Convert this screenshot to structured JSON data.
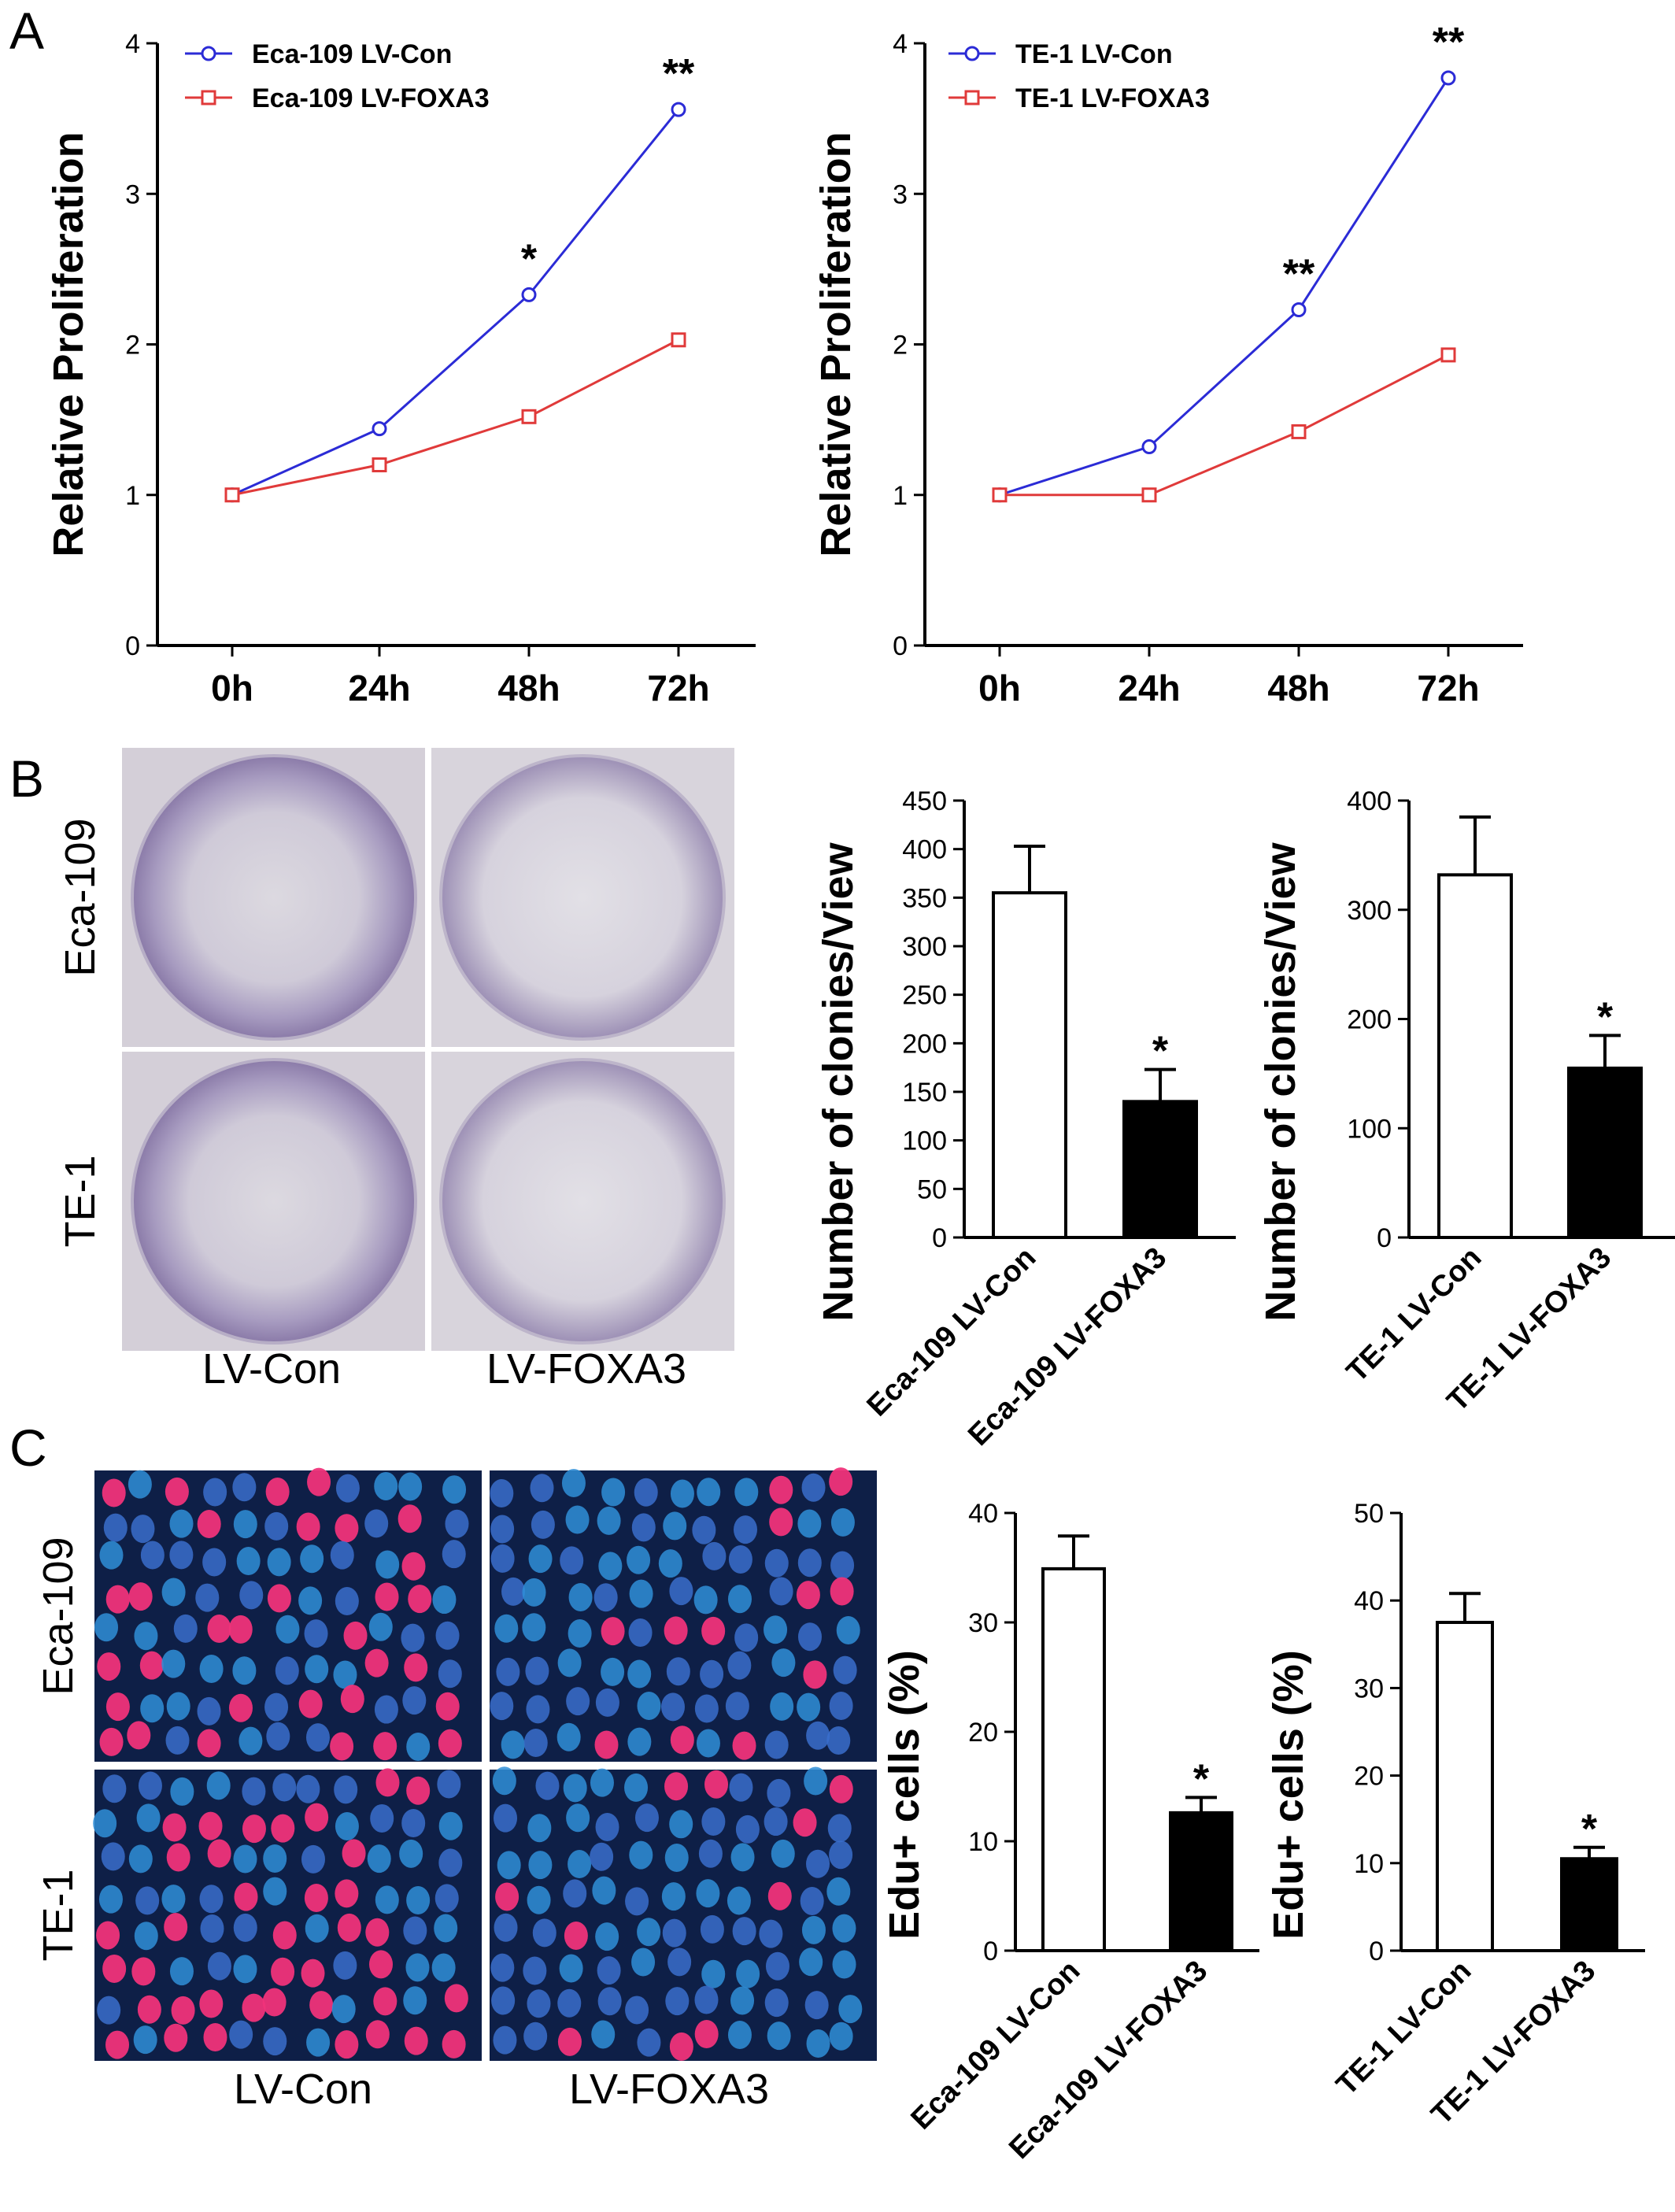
{
  "panels": {
    "a": "A",
    "b": "B",
    "c": "C"
  },
  "colors": {
    "con_line": "#2b2bd6",
    "foxa3_line": "#e03a3a",
    "bar_con": "#ffffff",
    "bar_foxa3": "#000000"
  },
  "images": {
    "col_labels": [
      "LV-Con",
      "LV-FOXA3"
    ],
    "row_labels": [
      "Eca-109",
      "TE-1"
    ]
  },
  "chart_data": [
    {
      "id": "a-left",
      "type": "line",
      "ylabel": "Relative Proliferation",
      "categories": [
        "0h",
        "24h",
        "48h",
        "72h"
      ],
      "ylim": [
        0,
        4
      ],
      "yticks": [
        "0",
        "1",
        "2",
        "3",
        "4"
      ],
      "legend_position": "top-left",
      "series": [
        {
          "name": "Eca-109 LV-Con",
          "values": [
            1.0,
            1.44,
            2.33,
            3.56
          ]
        },
        {
          "name": "Eca-109 LV-FOXA3",
          "values": [
            1.0,
            1.2,
            1.52,
            2.03
          ]
        }
      ],
      "annotations": [
        "",
        "",
        "*",
        "**"
      ]
    },
    {
      "id": "a-right",
      "type": "line",
      "ylabel": "Relative Proliferation",
      "categories": [
        "0h",
        "24h",
        "48h",
        "72h"
      ],
      "ylim": [
        0,
        4
      ],
      "yticks": [
        "0",
        "1",
        "2",
        "3",
        "4"
      ],
      "legend_position": "top-left",
      "series": [
        {
          "name": "TE-1 LV-Con",
          "values": [
            1.0,
            1.32,
            2.23,
            3.77
          ]
        },
        {
          "name": "TE-1 LV-FOXA3",
          "values": [
            1.0,
            1.0,
            1.42,
            1.93
          ]
        }
      ],
      "annotations": [
        "",
        "",
        "**",
        "**"
      ]
    },
    {
      "id": "b-left",
      "type": "bar",
      "ylabel": "Number of clonies/View",
      "categories": [
        "Eca-109 LV-Con",
        "Eca-109 LV-FOXA3"
      ],
      "values": [
        355,
        140
      ],
      "errors": [
        48,
        33
      ],
      "ylim": [
        0,
        450
      ],
      "yticks": [
        "0",
        "50",
        "100",
        "150",
        "200",
        "250",
        "300",
        "350",
        "400",
        "450"
      ],
      "annotations": [
        "",
        "*"
      ]
    },
    {
      "id": "b-right",
      "type": "bar",
      "ylabel": "Number of clonies/View",
      "categories": [
        "TE-1 LV-Con",
        "TE-1 LV-FOXA3"
      ],
      "values": [
        332,
        155
      ],
      "errors": [
        53,
        30
      ],
      "ylim": [
        0,
        400
      ],
      "yticks": [
        "0",
        "100",
        "200",
        "300",
        "400"
      ],
      "annotations": [
        "",
        "*"
      ]
    },
    {
      "id": "c-left",
      "type": "bar",
      "ylabel": "Edu+ cells (%)",
      "categories": [
        "Eca-109 LV-Con",
        "Eca-109 LV-FOXA3"
      ],
      "values": [
        34.9,
        12.6
      ],
      "errors": [
        3.0,
        1.4
      ],
      "ylim": [
        0,
        40
      ],
      "yticks": [
        "0",
        "10",
        "20",
        "30",
        "40"
      ],
      "annotations": [
        "",
        "*"
      ]
    },
    {
      "id": "c-right",
      "type": "bar",
      "ylabel": "Edu+ cells (%)",
      "categories": [
        "TE-1 LV-Con",
        "TE-1 LV-FOXA3"
      ],
      "values": [
        37.5,
        10.5
      ],
      "errors": [
        3.3,
        1.3
      ],
      "ylim": [
        0,
        50
      ],
      "yticks": [
        "0",
        "10",
        "20",
        "30",
        "40",
        "50"
      ],
      "annotations": [
        "",
        "*"
      ]
    }
  ]
}
